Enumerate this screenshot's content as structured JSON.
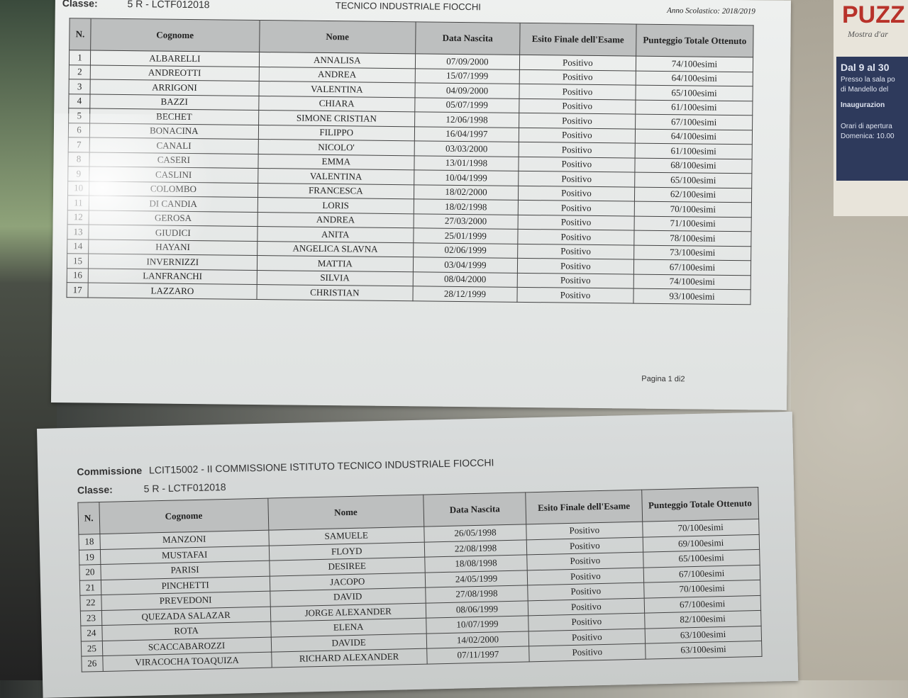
{
  "page1": {
    "institute_fragment": "TECNICO INDUSTRIALE FIOCCHI",
    "classe_label": "Classe:",
    "classe_value": "5 R - LCTF012018",
    "anno_scolastico": "Anno Scolastico: 2018/2019",
    "page_number": "Pagina 1 di2",
    "columns": [
      "N.",
      "Cognome",
      "Nome",
      "Data Nascita",
      "Esito Finale dell'Esame",
      "Punteggio Totale Ottenuto"
    ],
    "rows": [
      [
        "1",
        "ALBARELLI",
        "ANNALISA",
        "07/09/2000",
        "Positivo",
        "74/100esimi"
      ],
      [
        "2",
        "ANDREOTTI",
        "ANDREA",
        "15/07/1999",
        "Positivo",
        "64/100esimi"
      ],
      [
        "3",
        "ARRIGONI",
        "VALENTINA",
        "04/09/2000",
        "Positivo",
        "65/100esimi"
      ],
      [
        "4",
        "BAZZI",
        "CHIARA",
        "05/07/1999",
        "Positivo",
        "61/100esimi"
      ],
      [
        "5",
        "BECHET",
        "SIMONE CRISTIAN",
        "12/06/1998",
        "Positivo",
        "67/100esimi"
      ],
      [
        "6",
        "BONACINA",
        "FILIPPO",
        "16/04/1997",
        "Positivo",
        "64/100esimi"
      ],
      [
        "7",
        "CANALI",
        "NICOLO'",
        "03/03/2000",
        "Positivo",
        "61/100esimi"
      ],
      [
        "8",
        "CASERI",
        "EMMA",
        "13/01/1998",
        "Positivo",
        "68/100esimi"
      ],
      [
        "9",
        "CASLINI",
        "VALENTINA",
        "10/04/1999",
        "Positivo",
        "65/100esimi"
      ],
      [
        "10",
        "COLOMBO",
        "FRANCESCA",
        "18/02/2000",
        "Positivo",
        "62/100esimi"
      ],
      [
        "11",
        "DI CANDIA",
        "LORIS",
        "18/02/1998",
        "Positivo",
        "70/100esimi"
      ],
      [
        "12",
        "GEROSA",
        "ANDREA",
        "27/03/2000",
        "Positivo",
        "71/100esimi"
      ],
      [
        "13",
        "GIUDICI",
        "ANITA",
        "25/01/1999",
        "Positivo",
        "78/100esimi"
      ],
      [
        "14",
        "HAYANI",
        "ANGELICA SLAVNA",
        "02/06/1999",
        "Positivo",
        "73/100esimi"
      ],
      [
        "15",
        "INVERNIZZI",
        "MATTIA",
        "03/04/1999",
        "Positivo",
        "67/100esimi"
      ],
      [
        "16",
        "LANFRANCHI",
        "SILVIA",
        "08/04/2000",
        "Positivo",
        "74/100esimi"
      ],
      [
        "17",
        "LAZZARO",
        "CHRISTIAN",
        "28/12/1999",
        "Positivo",
        "93/100esimi"
      ]
    ]
  },
  "page2": {
    "commissione_label": "Commissione",
    "commissione_value": "LCIT15002 -  II COMMISSIONE ISTITUTO TECNICO INDUSTRIALE FIOCCHI",
    "classe_label": "Classe:",
    "classe_value": "5 R - LCTF012018",
    "columns": [
      "N.",
      "Cognome",
      "Nome",
      "Data Nascita",
      "Esito Finale dell'Esame",
      "Punteggio Totale Ottenuto"
    ],
    "rows": [
      [
        "18",
        "MANZONI",
        "SAMUELE",
        "26/05/1998",
        "Positivo",
        "70/100esimi"
      ],
      [
        "19",
        "MUSTAFAI",
        "FLOYD",
        "22/08/1998",
        "Positivo",
        "69/100esimi"
      ],
      [
        "20",
        "PARISI",
        "DESIREE",
        "18/08/1998",
        "Positivo",
        "65/100esimi"
      ],
      [
        "21",
        "PINCHETTI",
        "JACOPO",
        "24/05/1999",
        "Positivo",
        "67/100esimi"
      ],
      [
        "22",
        "PREVEDONI",
        "DAVID",
        "27/08/1998",
        "Positivo",
        "70/100esimi"
      ],
      [
        "23",
        "QUEZADA SALAZAR",
        "JORGE ALEXANDER",
        "08/06/1999",
        "Positivo",
        "67/100esimi"
      ],
      [
        "24",
        "ROTA",
        "ELENA",
        "10/07/1999",
        "Positivo",
        "82/100esimi"
      ],
      [
        "25",
        "SCACCABAROZZI",
        "DAVIDE",
        "14/02/2000",
        "Positivo",
        "63/100esimi"
      ],
      [
        "26",
        "VIRACOCHA TOAQUIZA",
        "RICHARD ALEXANDER",
        "07/11/1997",
        "Positivo",
        "63/100esimi"
      ]
    ]
  },
  "poster": {
    "title": "PUZZ",
    "subtitle": "Mostra d'ar",
    "line1": "Dal 9 al 30",
    "line2": "Presso la sala po",
    "line3": "di Mandello del",
    "line4": "Inaugurazion",
    "line5": "Orari di apertura",
    "line6": "Domenica: 10.00"
  }
}
